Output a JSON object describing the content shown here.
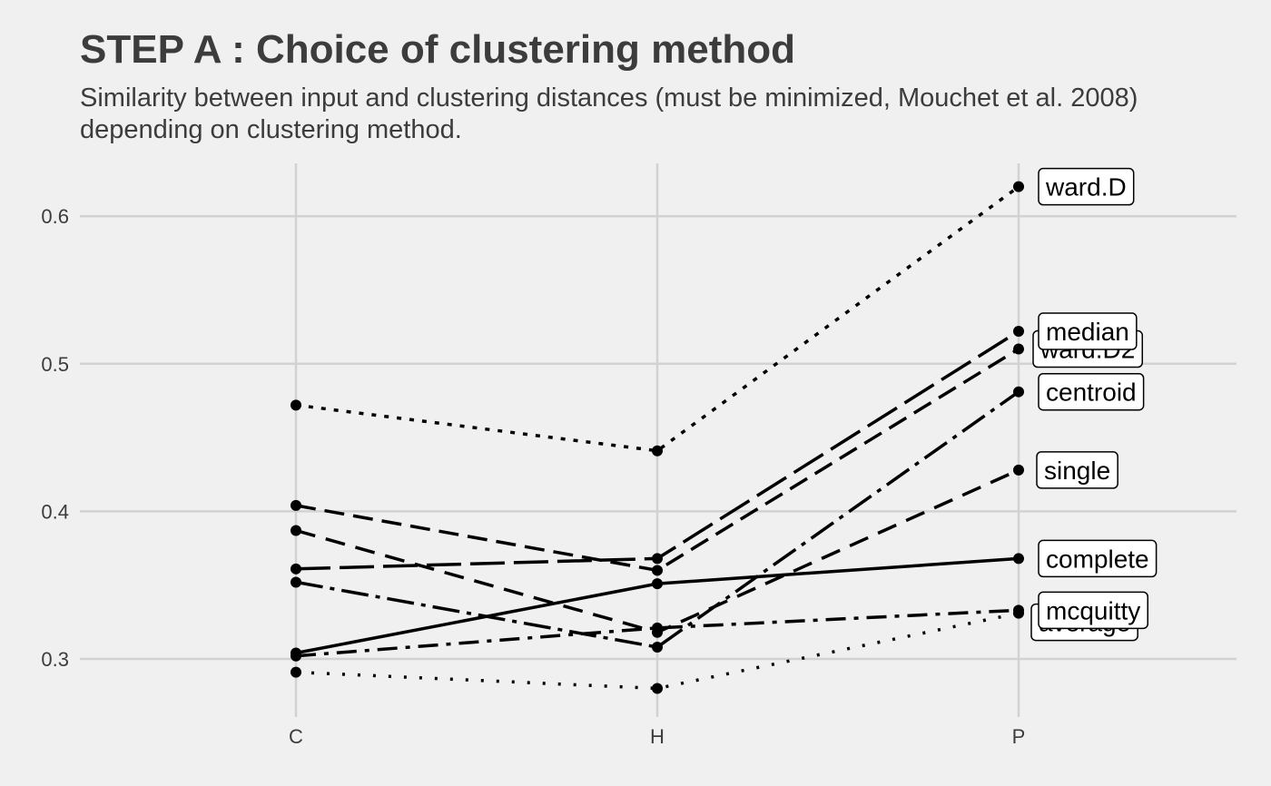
{
  "chart_data": {
    "type": "line",
    "title": "STEP A : Choice of clustering method",
    "subtitle_lines": [
      "Similarity between input and clustering distances (must be minimized, Mouchet et al. 2008)",
      "depending on clustering method."
    ],
    "xlabel": "",
    "ylabel": "",
    "categories": [
      "C",
      "H",
      "P"
    ],
    "ylim": [
      0.26,
      0.635
    ],
    "yticks": [
      "0.3",
      "0.4",
      "0.5",
      "0.6"
    ],
    "grid": true,
    "legend": "direct-labels",
    "series": [
      {
        "name": "ward.D",
        "values": [
          0.472,
          0.441,
          0.62
        ],
        "dash": "5,9"
      },
      {
        "name": "ward.D2",
        "values": [
          0.404,
          0.36,
          0.51
        ],
        "dash": "22,10"
      },
      {
        "name": "median",
        "values": [
          0.361,
          0.368,
          0.522
        ],
        "dash": "38,10"
      },
      {
        "name": "centroid",
        "values": [
          0.352,
          0.308,
          0.481
        ],
        "dash": "30,8,5,8"
      },
      {
        "name": "single",
        "values": [
          0.387,
          0.318,
          0.428
        ],
        "dash": "22,12"
      },
      {
        "name": "complete",
        "values": [
          0.304,
          0.351,
          0.368
        ],
        "dash": ""
      },
      {
        "name": "mcquitty",
        "values": [
          0.302,
          0.321,
          0.333
        ],
        "dash": "22,9,5,9"
      },
      {
        "name": "average",
        "values": [
          0.291,
          0.28,
          0.331
        ],
        "dash": "3,14"
      }
    ]
  }
}
